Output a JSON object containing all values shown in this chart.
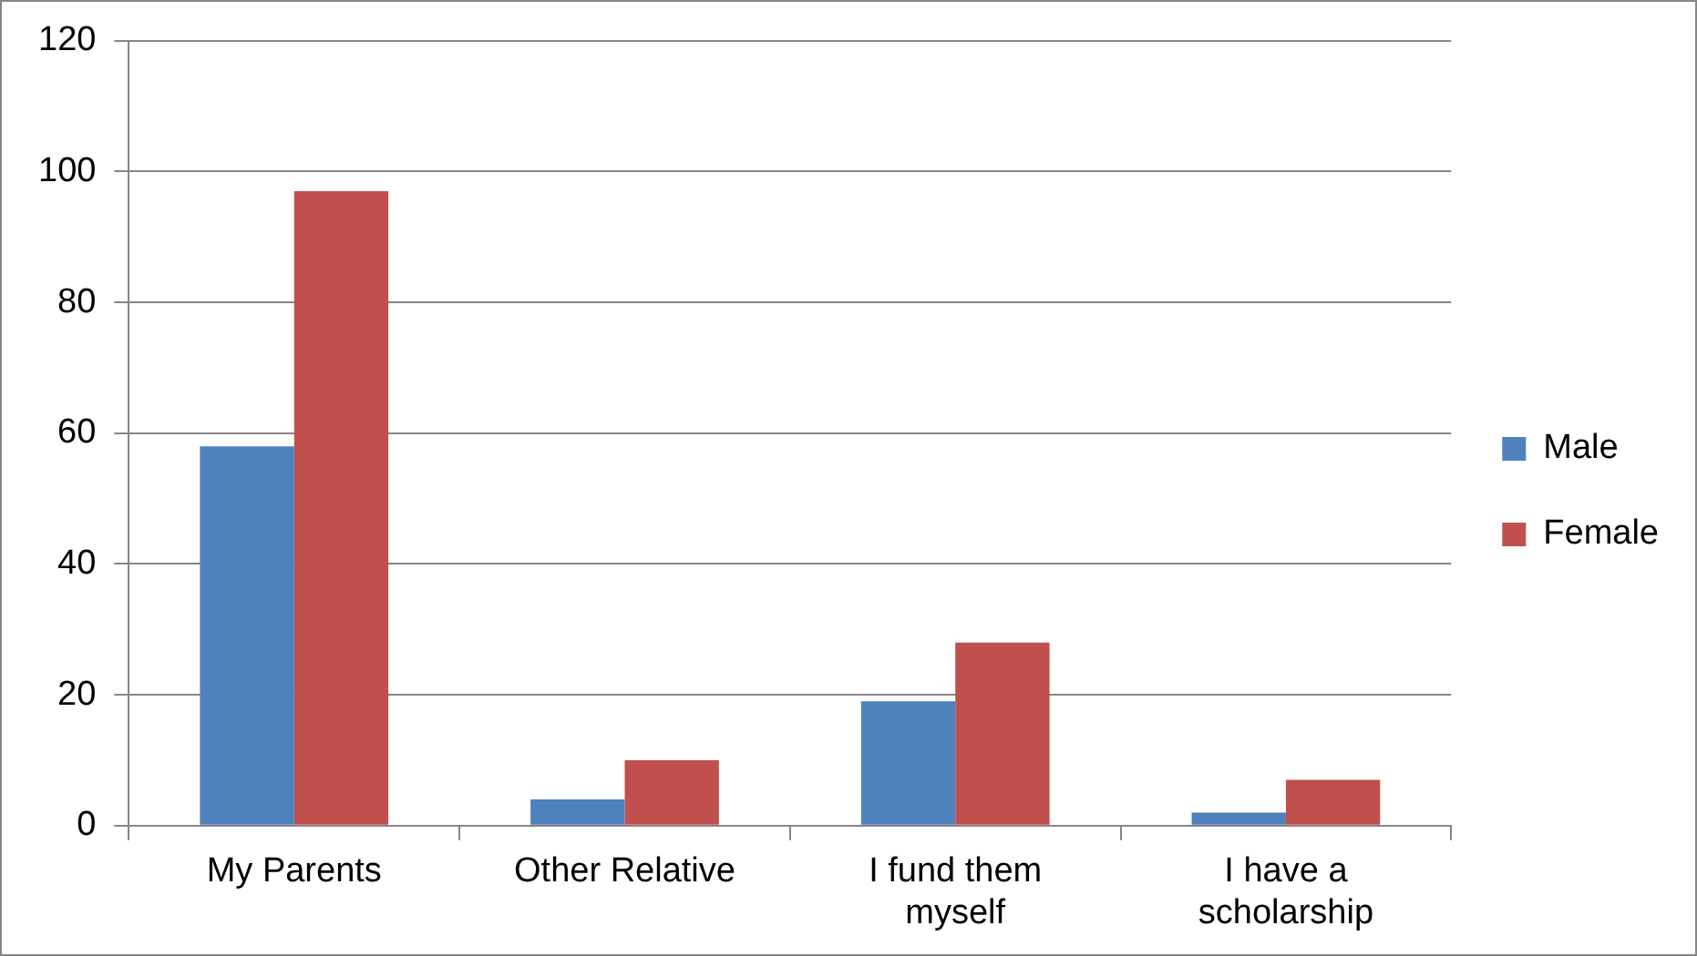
{
  "chart_data": {
    "type": "bar",
    "categories": [
      "My Parents",
      "Other Relative",
      "I fund them myself",
      "I have a scholarship"
    ],
    "series": [
      {
        "name": "Male",
        "color": "#4f81bd",
        "values": [
          58,
          4,
          19,
          2
        ]
      },
      {
        "name": "Female",
        "color": "#c0504d",
        "values": [
          97,
          10,
          28,
          7
        ]
      }
    ],
    "ylim": [
      0,
      120
    ],
    "yticks": [
      0,
      20,
      40,
      60,
      80,
      100,
      120
    ],
    "grid": "y",
    "legend": "right"
  }
}
